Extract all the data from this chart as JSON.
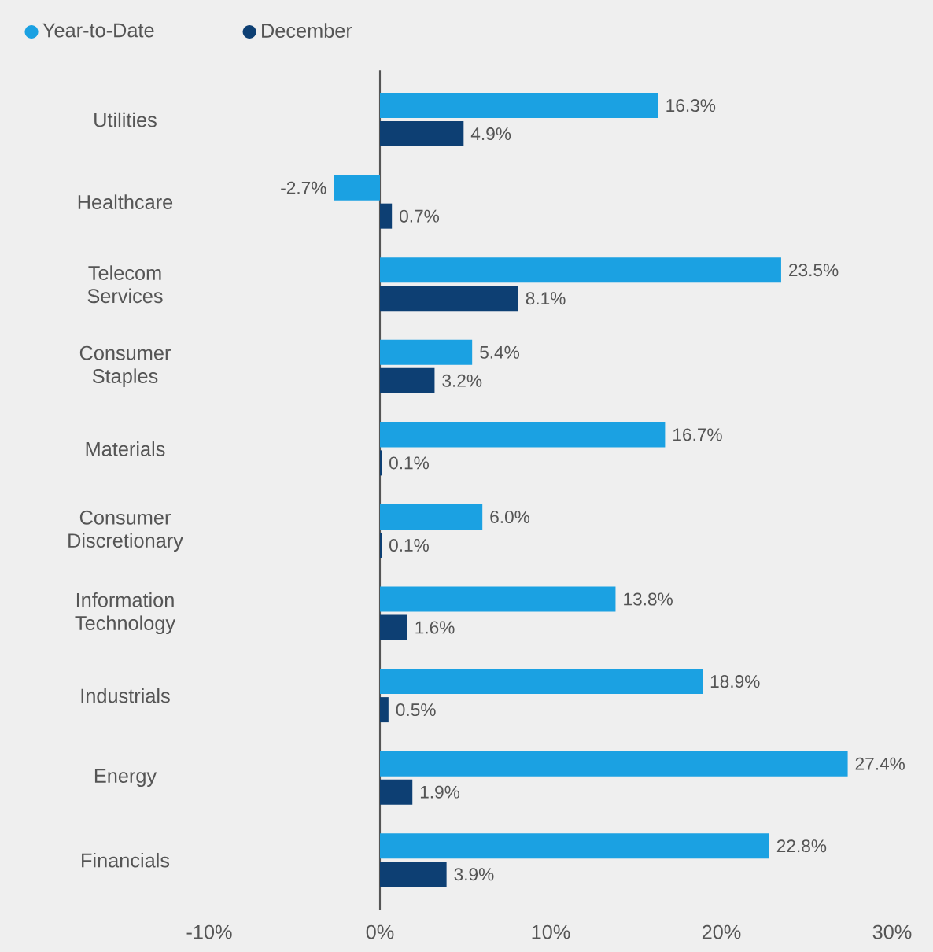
{
  "chart_data": {
    "type": "bar",
    "orientation": "horizontal",
    "categories": [
      "Utilities",
      "Healthcare",
      "Telecom Services",
      "Consumer Staples",
      "Materials",
      "Consumer Discretionary",
      "Information Technology",
      "Industrials",
      "Energy",
      "Financials"
    ],
    "series": [
      {
        "name": "Year-to-Date",
        "color": "#1ba1e2",
        "values": [
          16.3,
          -2.7,
          23.5,
          5.4,
          16.7,
          6.0,
          13.8,
          18.9,
          27.4,
          22.8
        ],
        "value_labels": [
          "16.3%",
          "-2.7%",
          "23.5%",
          "5.4%",
          "16.7%",
          "6.0%",
          "13.8%",
          "18.9%",
          "27.4%",
          "22.8%"
        ]
      },
      {
        "name": "December",
        "color": "#0d3f73",
        "values": [
          4.9,
          0.7,
          8.1,
          3.2,
          0.1,
          0.1,
          1.6,
          0.5,
          1.9,
          3.9
        ],
        "value_labels": [
          "4.9%",
          "0.7%",
          "8.1%",
          "3.2%",
          "0.1%",
          "0.1%",
          "1.6%",
          "0.5%",
          "1.9%",
          "3.9%"
        ]
      }
    ],
    "xlim": [
      -10,
      30
    ],
    "xticks": [
      {
        "value": -10,
        "label": "-10%"
      },
      {
        "value": 0,
        "label": "0%"
      },
      {
        "value": 10,
        "label": "10%"
      },
      {
        "value": 20,
        "label": "20%"
      },
      {
        "value": 30,
        "label": "30%"
      }
    ],
    "legend": "top left"
  }
}
